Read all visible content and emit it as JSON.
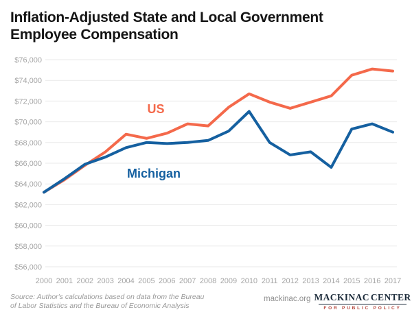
{
  "page": {
    "title_line1": "Inflation-Adjusted State and Local Government",
    "title_line2": "Employee Compensation"
  },
  "chart_data": {
    "type": "line",
    "title": "Inflation-Adjusted State and Local Government Employee Compensation",
    "x": [
      2000,
      2001,
      2002,
      2003,
      2004,
      2005,
      2006,
      2007,
      2008,
      2009,
      2010,
      2011,
      2012,
      2013,
      2014,
      2015,
      2016,
      2017
    ],
    "series": [
      {
        "name": "US",
        "color": "#f4694b",
        "values": [
          63200,
          64400,
          65800,
          67100,
          68800,
          68400,
          68900,
          69800,
          69600,
          71400,
          72700,
          71900,
          71300,
          71900,
          72500,
          74500,
          75100,
          74900
        ]
      },
      {
        "name": "Michigan",
        "color": "#1560a0",
        "values": [
          63200,
          64500,
          65900,
          66600,
          67500,
          68000,
          67900,
          68000,
          68200,
          69100,
          71000,
          68000,
          66800,
          67100,
          65600,
          69300,
          69800,
          69000
        ]
      }
    ],
    "xlabel": "",
    "ylabel": "",
    "ylim": [
      56000,
      76000
    ],
    "ytick_step": 2000,
    "ytick_prefix": "$",
    "grid": "horizontal-only",
    "legend": "inline-series-labels"
  },
  "footer": {
    "source_line1": "Source: Author's calculations based on data from the Bureau",
    "source_line2": "of Labor Statistics and the Bureau of Economic Analysis",
    "site": "mackinac.org",
    "logo": {
      "word1": "MACKINAC",
      "word2": "CENTER",
      "tagline": "FOR PUBLIC POLICY",
      "icon_color": "#2d9fa0",
      "text_color": "#1c2b3a",
      "tagline_color": "#b5443b"
    }
  },
  "colors": {
    "title": "#151515",
    "tick_labels": "#a5a5a5",
    "gridlines": "#e9e9e9",
    "source_text": "#999999"
  }
}
